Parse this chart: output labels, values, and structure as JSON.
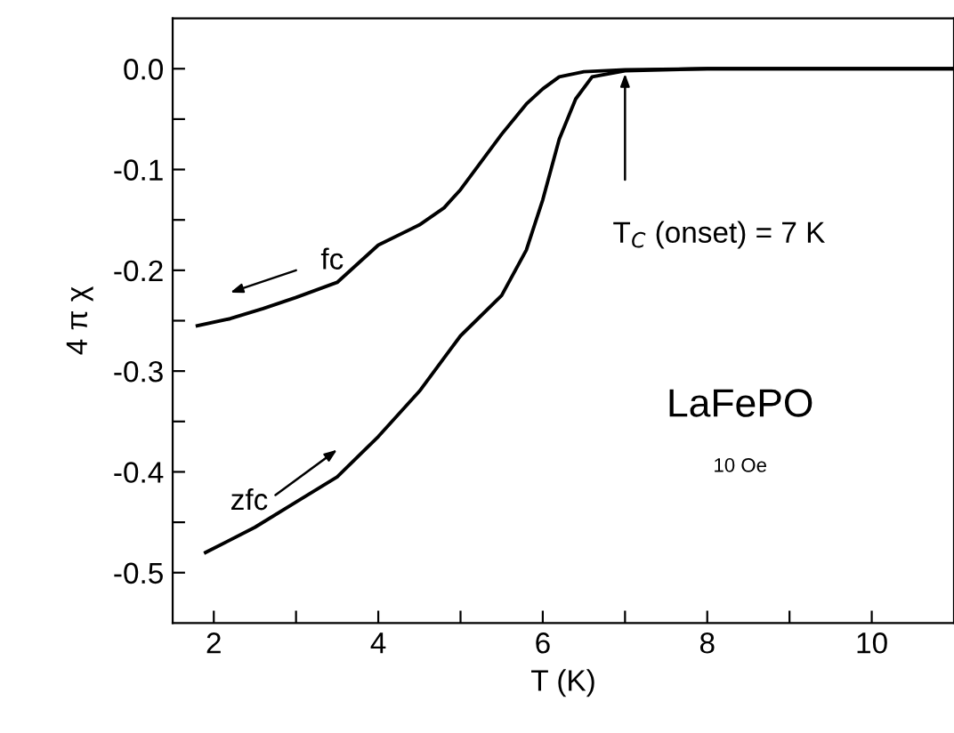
{
  "chart_data": {
    "type": "line",
    "xlabel": "T (K)",
    "ylabel": "4 π χ",
    "series": [
      {
        "name": "fc",
        "color": "#000000",
        "x": [
          1.8,
          2.2,
          2.6,
          3.0,
          3.5,
          4.0,
          4.5,
          4.8,
          5.0,
          5.5,
          5.8,
          6.0,
          6.2,
          6.5,
          7.0,
          8.0,
          11.0
        ],
        "values": [
          -0.255,
          -0.248,
          -0.238,
          -0.227,
          -0.212,
          -0.175,
          -0.155,
          -0.138,
          -0.12,
          -0.065,
          -0.035,
          -0.02,
          -0.008,
          -0.003,
          -0.001,
          0.0,
          0.0
        ]
      },
      {
        "name": "zfc",
        "color": "#000000",
        "x": [
          1.9,
          2.5,
          3.0,
          3.5,
          4.0,
          4.5,
          5.0,
          5.5,
          5.8,
          6.0,
          6.2,
          6.4,
          6.6,
          7.0,
          8.0,
          11.0
        ],
        "values": [
          -0.48,
          -0.455,
          -0.43,
          -0.405,
          -0.365,
          -0.32,
          -0.265,
          -0.225,
          -0.18,
          -0.13,
          -0.07,
          -0.03,
          -0.008,
          -0.002,
          0.0,
          0.0
        ]
      }
    ],
    "annotations": [
      "T$_{C}$ (onset) = 7 K",
      "LaFePO",
      "10 Oe"
    ],
    "xlim": [
      1.5,
      11
    ],
    "ylim": [
      -0.55,
      0.05
    ],
    "xticks": [
      2,
      {
        "value": 3,
        "label": null
      },
      4,
      {
        "value": 5,
        "label": null
      },
      6,
      {
        "value": 7,
        "label": null
      },
      8,
      {
        "value": 9,
        "label": null
      },
      10
    ],
    "yticks": [
      {
        "value": -0.5,
        "label": "-0.5"
      },
      {
        "value": -0.45,
        "label": null
      },
      {
        "value": -0.4,
        "label": "-0.4"
      },
      {
        "value": -0.35,
        "label": null
      },
      {
        "value": -0.3,
        "label": "-0.3"
      },
      {
        "value": -0.25,
        "label": null
      },
      {
        "value": -0.2,
        "label": "-0.2"
      },
      {
        "value": -0.15,
        "label": null
      },
      {
        "value": -0.1,
        "label": "-0.1"
      },
      {
        "value": -0.05,
        "label": null
      },
      {
        "value": 0.0,
        "label": "0.0"
      }
    ],
    "grid": false,
    "legend": false,
    "marker": "none",
    "line_style": "solid"
  }
}
